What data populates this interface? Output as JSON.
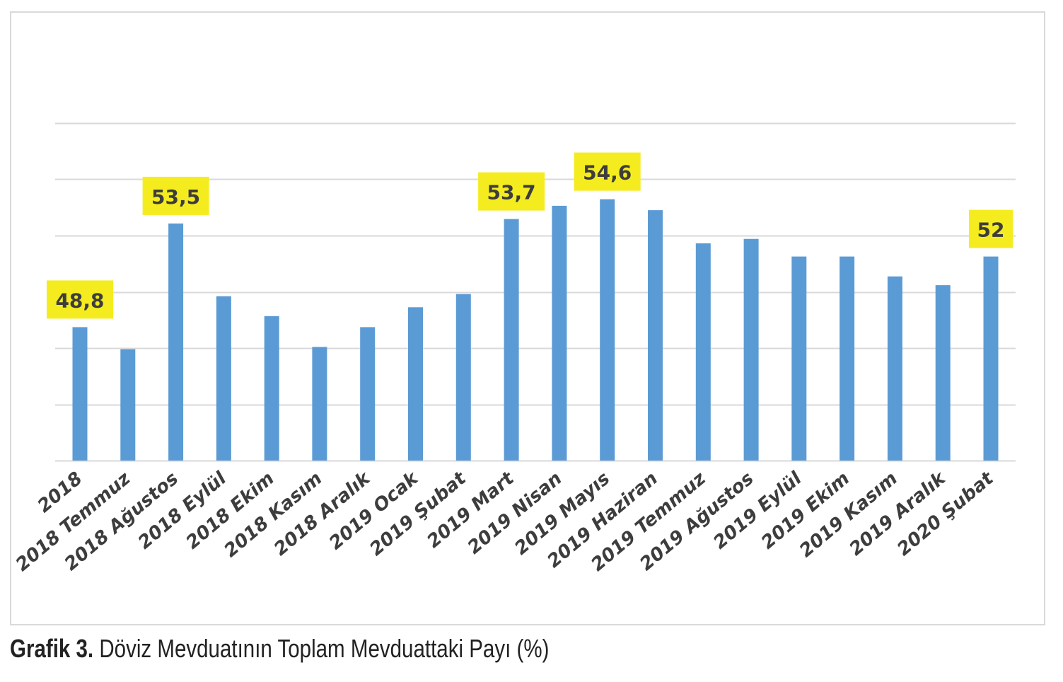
{
  "caption": {
    "lead": "Grafik 3.",
    "text": " Döviz Mevduatının Toplam Mevduattaki Payı (%)"
  },
  "colors": {
    "bar": "#5b9bd5",
    "highlight": "#f5ec1f",
    "label_text": "#3d3d3d",
    "gridline": "#d9d9d9"
  },
  "chart_data": {
    "type": "bar",
    "categories": [
      "2018",
      "2018 Temmuz",
      "2018 Ağustos",
      "2018 Eylül",
      "2018 Ekim",
      "2018 Kasım",
      "2018 Aralık",
      "2019 Ocak",
      "2019 Şubat",
      "2019 Mart",
      "2019 Nisan",
      "2019 Mayıs",
      "2019 Haziran",
      "2019 Temmuz",
      "2019 Ağustos",
      "2019 Eylül",
      "2019 Ekim",
      "2019 Kasım",
      "2019 Aralık",
      "2020 Şubat"
    ],
    "values": [
      48.8,
      47.8,
      53.5,
      50.2,
      49.3,
      47.9,
      48.8,
      49.7,
      50.3,
      53.7,
      54.3,
      54.6,
      54.1,
      52.6,
      52.8,
      52.0,
      52.0,
      51.1,
      50.7,
      52.0
    ],
    "data_labels": [
      {
        "index": 0,
        "text": "48,8"
      },
      {
        "index": 2,
        "text": "53,5"
      },
      {
        "index": 9,
        "text": "53,7"
      },
      {
        "index": 11,
        "text": "54,6"
      },
      {
        "index": 19,
        "text": "52"
      }
    ],
    "ylim": [
      42.75,
      58.05
    ],
    "gridlines": [
      42.75,
      45.3,
      47.85,
      50.4,
      52.95,
      55.5,
      58.05
    ],
    "grid": true,
    "legend": "none"
  }
}
